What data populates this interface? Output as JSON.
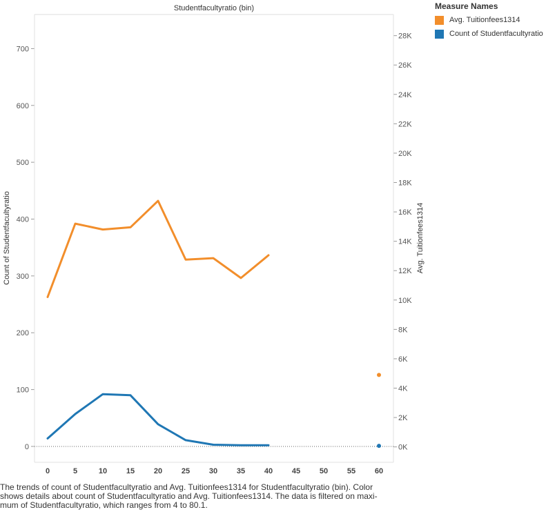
{
  "chart_data": {
    "type": "line",
    "title": "Studentfacultyratio (bin)",
    "x": [
      0,
      5,
      10,
      15,
      20,
      25,
      30,
      35,
      40,
      45,
      50,
      55,
      60
    ],
    "xticks": [
      "0",
      "5",
      "10",
      "15",
      "20",
      "25",
      "30",
      "35",
      "40",
      "45",
      "50",
      "55",
      "60"
    ],
    "y_left": {
      "label": "Count of Studentfacultyratio",
      "range": [
        -28,
        760
      ],
      "ticks": [
        0,
        100,
        200,
        300,
        400,
        500,
        600,
        700
      ],
      "tick_labels": [
        "0",
        "100",
        "200",
        "300",
        "400",
        "500",
        "600",
        "700"
      ]
    },
    "y_right": {
      "label": "Avg. Tuitionfees1314",
      "range": [
        -1050,
        29440
      ],
      "ticks": [
        0,
        2000,
        4000,
        6000,
        8000,
        10000,
        12000,
        14000,
        16000,
        18000,
        20000,
        22000,
        24000,
        26000,
        28000
      ],
      "tick_labels": [
        "0K",
        "2K",
        "4K",
        "6K",
        "8K",
        "10K",
        "12K",
        "14K",
        "16K",
        "18K",
        "20K",
        "22K",
        "24K",
        "26K",
        "28K"
      ]
    },
    "series": [
      {
        "name": "Avg. Tuitionfees1314",
        "color": "#f28e2b",
        "axis": "right",
        "points": [
          [
            0,
            10200
          ],
          [
            5,
            15200
          ],
          [
            10,
            14800
          ],
          [
            15,
            14950
          ],
          [
            20,
            16750
          ],
          [
            25,
            12750
          ],
          [
            30,
            12850
          ],
          [
            35,
            11500
          ],
          [
            40,
            13050
          ]
        ],
        "extra_points": [
          [
            60,
            4900
          ]
        ]
      },
      {
        "name": "Count of Studentfacultyratio",
        "color": "#1f77b4",
        "axis": "left",
        "points": [
          [
            0,
            14
          ],
          [
            5,
            57
          ],
          [
            10,
            92
          ],
          [
            15,
            90
          ],
          [
            20,
            39
          ],
          [
            25,
            11
          ],
          [
            30,
            3
          ],
          [
            35,
            2
          ],
          [
            40,
            2
          ]
        ],
        "extra_points": [
          [
            60,
            1
          ]
        ]
      }
    ],
    "grid": false,
    "legend_position": "top-right"
  },
  "legend": {
    "title": "Measure Names",
    "items": [
      {
        "label": "Avg. Tuitionfees1314",
        "color": "#f28e2b"
      },
      {
        "label": "Count of Studentfacultyratio",
        "color": "#1f77b4"
      }
    ]
  },
  "caption": "The trends of count of Studentfacultyratio and Avg. Tuitionfees1314 for Studentfacultyratio (bin).  Color shows details about count of Studentfacultyratio and Avg. Tuitionfees1314. The data is filtered on maxi-mum of  Studentfacultyratio, which ranges from 4 to 80.1."
}
